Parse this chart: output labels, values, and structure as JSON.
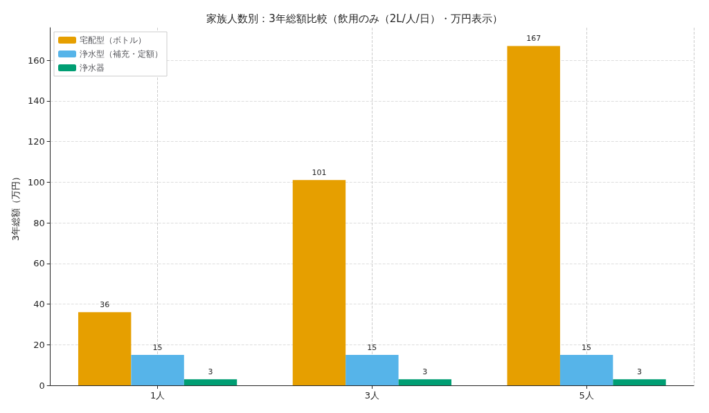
{
  "chart_data": {
    "type": "bar",
    "title": "家族人数別：3年総額比較（飲用のみ（2L/人/日）・万円表示）",
    "ylabel": "3年総額（万円）",
    "categories": [
      "1人",
      "3人",
      "5人"
    ],
    "series": [
      {
        "name": "宅配型（ボトル）",
        "color": "#e69f00",
        "values": [
          36,
          101,
          167
        ]
      },
      {
        "name": "浄水型（補充・定額）",
        "color": "#56b4e9",
        "values": [
          15,
          15,
          15
        ]
      },
      {
        "name": "浄水器",
        "color": "#009e73",
        "values": [
          3,
          3,
          3
        ]
      }
    ],
    "ylim": [
      0,
      176
    ],
    "yticks": [
      0,
      20,
      40,
      60,
      80,
      100,
      120,
      140,
      160
    ],
    "grid": true,
    "legend": "top left",
    "data_labels": true
  }
}
